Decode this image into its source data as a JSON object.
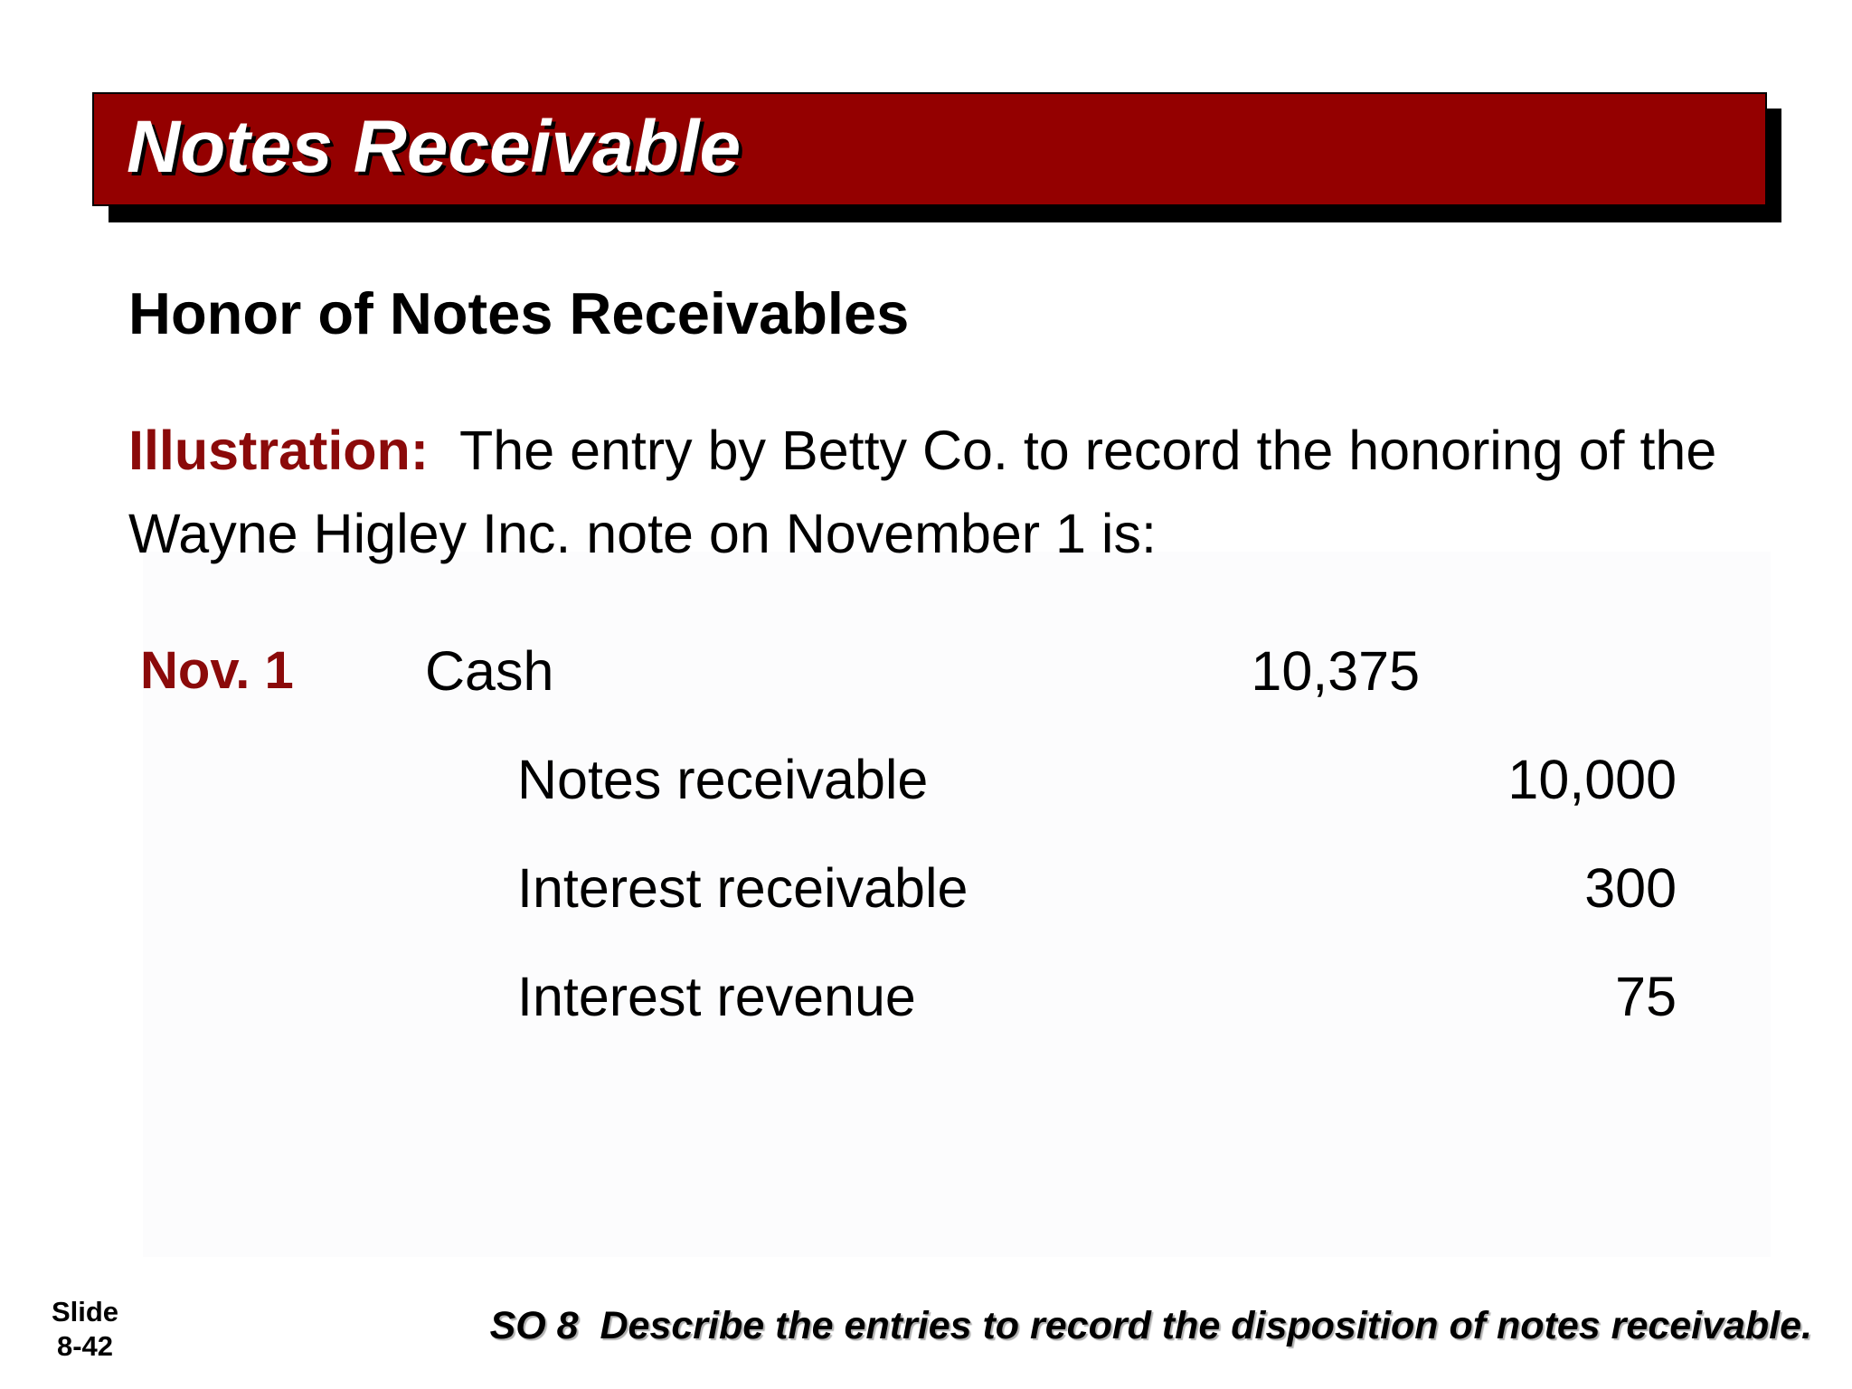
{
  "header": {
    "title": "Notes Receivable"
  },
  "section": {
    "subtitle": "Honor of Notes Receivables"
  },
  "illustration": {
    "label": "Illustration:",
    "line1": "The entry by Betty Co. to record the honoring of the",
    "line2": "Wayne Higley Inc. note on November 1 is:"
  },
  "journal_entry": {
    "date": "Nov. 1",
    "debits": [
      {
        "account": "Cash",
        "amount": "10,375"
      }
    ],
    "credits": [
      {
        "account": "Notes receivable",
        "amount": "10,000"
      },
      {
        "account": "Interest receivable",
        "amount": "300"
      },
      {
        "account": "Interest revenue",
        "amount": "75"
      }
    ]
  },
  "footer": {
    "slide_label": "Slide",
    "slide_number": "8-42",
    "objective": "SO 8  Describe the entries to record the disposition of notes receivable."
  },
  "colors": {
    "title_bar": "#940000",
    "accent_text": "#8b0a0a"
  }
}
